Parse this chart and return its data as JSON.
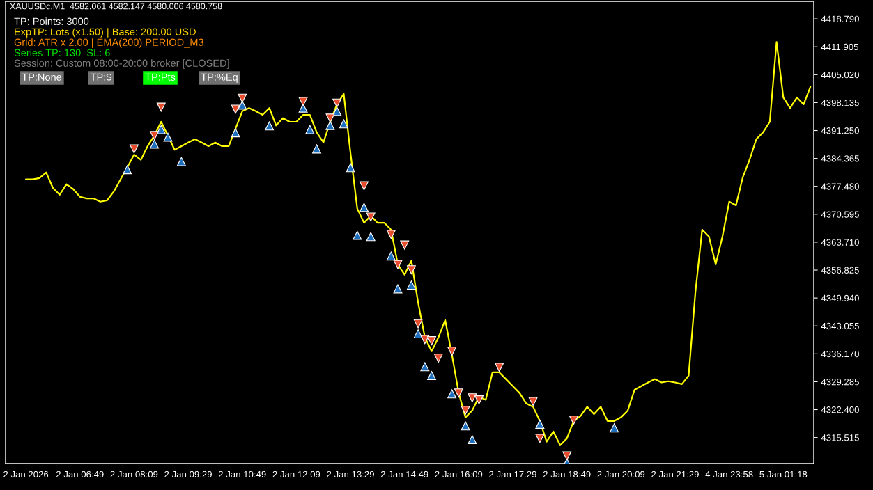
{
  "chart_data": {
    "type": "line",
    "title": "XAUUSDc,M1  4582.061 4582.147 4580.006 4580.758",
    "annotations": [
      "TP: Points: 3000",
      "ExpTP: Lots (x1.50) | Base: 200.00 USD",
      "Grid: ATR x 2.00 | EMA(200) PERIOD_M3",
      "Series TP: 130  SL: 6",
      "Session: Custom 08:00-20:00 broker [CLOSED]",
      "TP:None",
      "TP:$",
      "TP:Pts",
      "TP:%Eq"
    ],
    "categories": [
      "2 Jan 2026",
      null,
      null,
      null,
      null,
      null,
      null,
      null,
      "2 Jan 06:49",
      null,
      null,
      null,
      null,
      null,
      null,
      null,
      "2 Jan 08:09",
      null,
      null,
      null,
      null,
      null,
      null,
      null,
      "2 Jan 09:29",
      null,
      null,
      null,
      null,
      null,
      null,
      null,
      "2 Jan 10:49",
      null,
      null,
      null,
      null,
      null,
      null,
      null,
      "2 Jan 12:09",
      null,
      null,
      null,
      null,
      null,
      null,
      null,
      "2 Jan 13:29",
      null,
      null,
      null,
      null,
      null,
      null,
      null,
      "2 Jan 14:49",
      null,
      null,
      null,
      null,
      null,
      null,
      null,
      "2 Jan 16:09",
      null,
      null,
      null,
      null,
      null,
      null,
      null,
      "2 Jan 17:29",
      null,
      null,
      null,
      null,
      null,
      null,
      null,
      "2 Jan 18:49",
      null,
      null,
      null,
      null,
      null,
      null,
      null,
      "2 Jan 20:09",
      null,
      null,
      null,
      null,
      null,
      null,
      null,
      "2 Jan 21:29",
      null,
      null,
      null,
      null,
      null,
      null,
      null,
      "4 Jan 23:58",
      null,
      null,
      null,
      null,
      null,
      null,
      null,
      "5 Jan 01:18",
      null,
      null,
      null,
      null
    ],
    "series": [
      {
        "color": "#ffff00",
        "values": [
          4379.2,
          4379.2,
          4379.5,
          4380.9,
          4377.1,
          4375.4,
          4378.0,
          4376.8,
          4374.9,
          4374.5,
          4374.5,
          4373.7,
          4374.0,
          4376.2,
          4379.2,
          4382.2,
          4385.3,
          4384.0,
          4387.4,
          4390.0,
          4393.4,
          4390.0,
          4386.5,
          4387.4,
          4388.3,
          4389.1,
          4388.3,
          4387.4,
          4388.3,
          4387.4,
          4387.4,
          4391.7,
          4396.0,
          4396.8,
          4396.0,
          4395.1,
          4396.8,
          4392.5,
          4394.3,
          4393.4,
          4393.4,
          4395.1,
          4395.1,
          4390.8,
          4388.3,
          4393.4,
          4397.7,
          4400.3,
          4385.7,
          4372.0,
          4368.5,
          4370.2,
          4368.5,
          4368.5,
          4366.8,
          4358.2,
          4355.7,
          4359.1,
          4348.8,
          4340.2,
          4336.8,
          4340.2,
          4344.5,
          4335.9,
          4326.5,
          4320.5,
          4322.2,
          4325.6,
          4324.8,
          4331.6,
          4331.6,
          4329.9,
          4328.2,
          4326.5,
          4323.9,
          4323.1,
          4319.6,
          4314.5,
          4317.0,
          4313.6,
          4315.3,
          4319.6,
          4320.8,
          4323.1,
          4321.3,
          4323.1,
          4319.6,
          4319.6,
          4320.5,
          4322.2,
          4327.3,
          4328.2,
          4329.1,
          4329.9,
          4329.1,
          4329.4,
          4329.1,
          4328.7,
          4330.8,
          4351.4,
          4366.8,
          4365.1,
          4358.2,
          4365.1,
          4373.7,
          4372.8,
          4379.7,
          4384.0,
          4389.1,
          4390.8,
          4393.4,
          4413.1,
          4399.4,
          4396.8,
          4399.4,
          4397.7,
          4402.0
        ]
      },
      {
        "type": "scatter",
        "color": "#1f6fbf",
        "marker": "triangle",
        "values": [
          null,
          null,
          null,
          null,
          null,
          null,
          null,
          null,
          null,
          null,
          null,
          null,
          null,
          null,
          null,
          4381.6,
          null,
          null,
          null,
          4387.9,
          4391.5,
          4389.6,
          null,
          4383.6,
          null,
          null,
          null,
          null,
          null,
          null,
          null,
          4390.7,
          4397.5,
          null,
          null,
          null,
          4392.4,
          null,
          null,
          null,
          null,
          4396.8,
          4391.5,
          4386.7,
          null,
          4392.5,
          4396.0,
          4392.9,
          4382.1,
          4365.4,
          4372.3,
          4365.1,
          null,
          null,
          4360.3,
          4352.2,
          null,
          4353.1,
          4341.1,
          4333.0,
          4330.8,
          null,
          null,
          4326.3,
          null,
          4318.4,
          4315.0,
          null,
          null,
          null,
          null,
          null,
          null,
          null,
          null,
          null,
          4318.8,
          null,
          null,
          null,
          4309.3,
          null,
          null,
          null,
          null,
          null,
          null,
          4317.9,
          null,
          null,
          null,
          null,
          null,
          null,
          null,
          null,
          null,
          null,
          null,
          null,
          null,
          null,
          null,
          null,
          null,
          null,
          null,
          null,
          null,
          null,
          null,
          null,
          null,
          null,
          null,
          null,
          null
        ]
      },
      {
        "type": "scatter",
        "color": "#e84c2c",
        "values": [
          null,
          null,
          null,
          null,
          null,
          null,
          null,
          null,
          null,
          null,
          null,
          null,
          null,
          null,
          null,
          null,
          4386.7,
          null,
          null,
          4390.0,
          4397.0,
          null,
          null,
          null,
          null,
          null,
          null,
          null,
          null,
          null,
          null,
          4396.5,
          4399.2,
          null,
          null,
          null,
          null,
          null,
          null,
          null,
          null,
          4398.4,
          null,
          null,
          null,
          4394.3,
          4398.0,
          null,
          null,
          null,
          4377.6,
          4369.9,
          null,
          null,
          4365.6,
          4358.2,
          4363.0,
          4356.9,
          4343.6,
          4339.7,
          4339.4,
          4335.1,
          null,
          4336.8,
          4326.5,
          4322.2,
          4325.3,
          4324.8,
          null,
          null,
          4332.8,
          null,
          null,
          null,
          null,
          4324.4,
          4315.3,
          null,
          null,
          null,
          4311.0,
          4319.8,
          null,
          null,
          null,
          null,
          null,
          null,
          null,
          null,
          null,
          null,
          null,
          null,
          null,
          null,
          null,
          null,
          null,
          null,
          null,
          null,
          null,
          null,
          null,
          null,
          null,
          null,
          null,
          null,
          null,
          null,
          null,
          null,
          null,
          null,
          null
        ]
      }
    ],
    "ylim": [
      4309.1,
      4423.1
    ],
    "yticks": [
      {
        "value": 4418.79,
        "label": "4418.790"
      },
      {
        "value": 4411.905,
        "label": "4411.905"
      },
      {
        "value": 4405.02,
        "label": "4405.020"
      },
      {
        "value": 4398.135,
        "label": "4398.135"
      },
      {
        "value": 4391.25,
        "label": "4391.250"
      },
      {
        "value": 4384.365,
        "label": "4384.365"
      },
      {
        "value": 4377.48,
        "label": "4377.480"
      },
      {
        "value": 4370.595,
        "label": "4370.595"
      },
      {
        "value": 4363.71,
        "label": "4363.710"
      },
      {
        "value": 4356.825,
        "label": "4356.825"
      },
      {
        "value": 4349.94,
        "label": "4349.940"
      },
      {
        "value": 4343.055,
        "label": "4343.055"
      },
      {
        "value": 4336.17,
        "label": "4336.170"
      },
      {
        "value": 4329.285,
        "label": "4329.285"
      },
      {
        "value": 4322.4,
        "label": "4322.400"
      },
      {
        "value": 4315.515,
        "label": "4315.515"
      }
    ],
    "grid": false
  }
}
